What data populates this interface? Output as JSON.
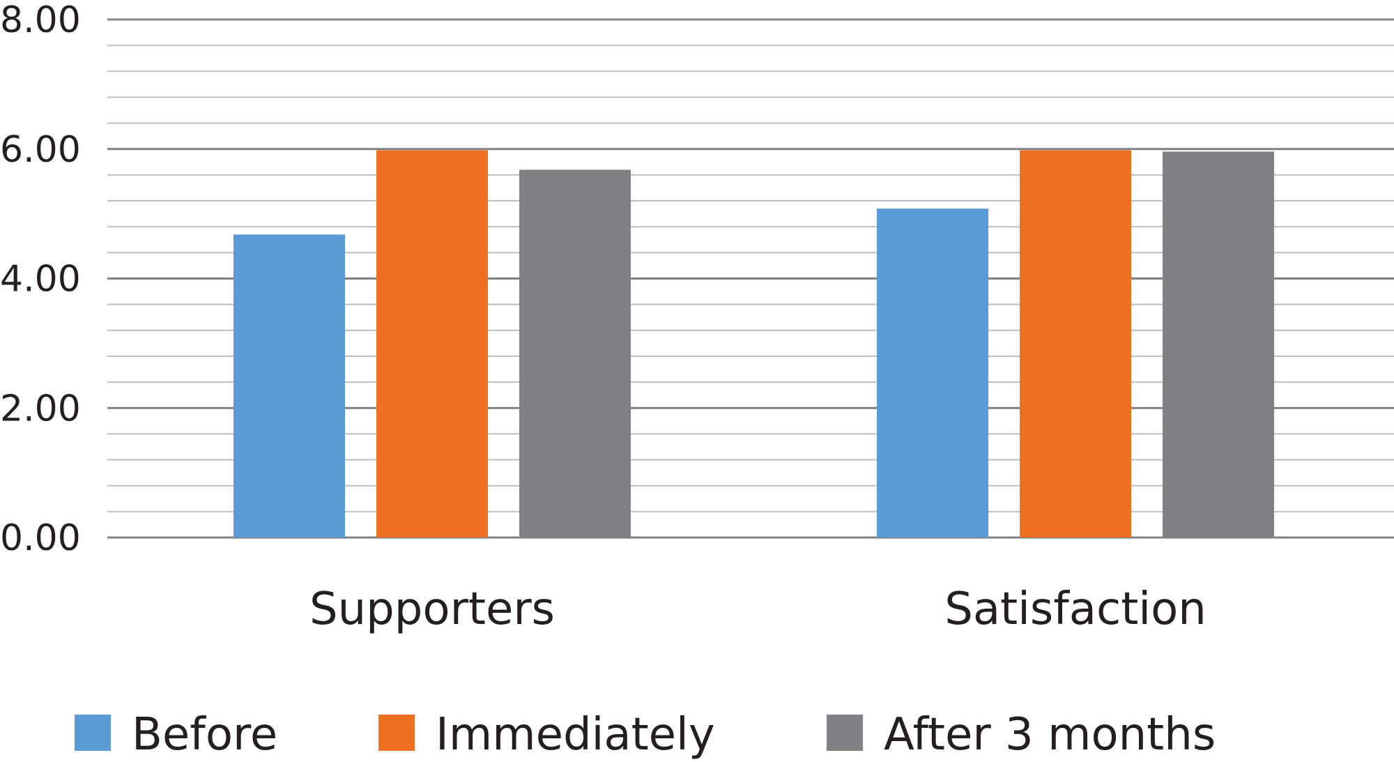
{
  "chart_data": {
    "type": "bar",
    "categories": [
      "Supporters",
      "Satisfaction"
    ],
    "series": [
      {
        "name": "Before",
        "color": "#5b9bd5",
        "values": [
          4.68,
          5.08
        ]
      },
      {
        "name": "Immediately",
        "color": "#f07022",
        "values": [
          5.98,
          5.98
        ]
      },
      {
        "name": "After 3 months",
        "color": "#808184",
        "values": [
          5.68,
          5.96
        ]
      }
    ],
    "yticks": [
      "0.00",
      "2.00",
      "4.00",
      "6.00",
      "8.00"
    ],
    "ylim": [
      0,
      8
    ],
    "minor_step": 0.4,
    "grid": true,
    "legend_position": "bottom-left",
    "title": "",
    "xlabel": "",
    "ylabel": ""
  }
}
